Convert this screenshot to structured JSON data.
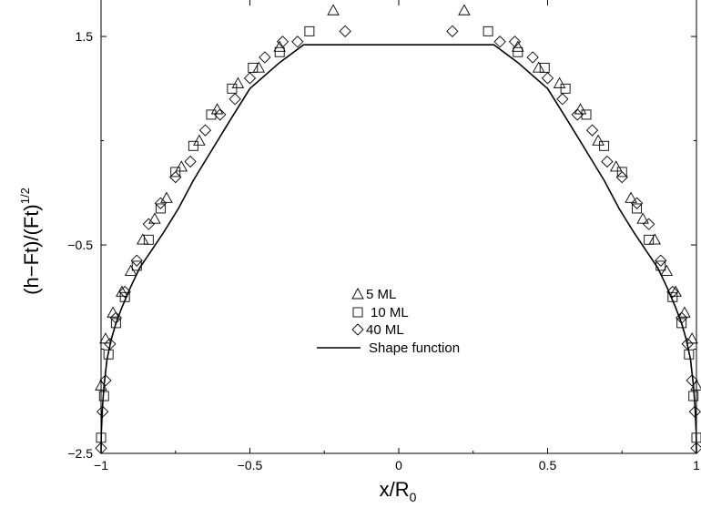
{
  "chart_data": {
    "type": "scatter",
    "xlabel": {
      "main": "x/R",
      "sub": "0"
    },
    "ylabel": {
      "main": "(h−Ft)/(Ft)",
      "sup": "1/2"
    },
    "xlim": [
      -1,
      1
    ],
    "ylim": [
      -2.5,
      1.85
    ],
    "x_ticks": [
      {
        "value": -1,
        "label": "−1"
      },
      {
        "value": -0.5,
        "label": "−0.5"
      },
      {
        "value": 0,
        "label": "0"
      },
      {
        "value": 0.5,
        "label": "0.5"
      },
      {
        "value": 1,
        "label": "1"
      }
    ],
    "y_ticks": [
      {
        "value": -2.5,
        "label": "−2.5"
      },
      {
        "value": -0.5,
        "label": "−0.5"
      },
      {
        "value": 1.5,
        "label": "1.5"
      }
    ],
    "legend_position": "center",
    "series": [
      {
        "name": "5 ML",
        "marker": "triangle",
        "x": [
          -1.0,
          -0.985,
          -0.96,
          -0.93,
          -0.9,
          -0.86,
          -0.82,
          -0.78,
          -0.73,
          -0.67,
          -0.61,
          -0.54,
          -0.47,
          -0.4,
          -0.22,
          0.22,
          0.4,
          0.47,
          0.54,
          0.61,
          0.67,
          0.73,
          0.78,
          0.82,
          0.86,
          0.9,
          0.93,
          0.96,
          0.985,
          1.0
        ],
        "y": [
          -1.85,
          -1.4,
          -1.15,
          -0.95,
          -0.75,
          -0.45,
          -0.25,
          -0.05,
          0.25,
          0.5,
          0.8,
          1.05,
          1.2,
          1.4,
          1.75,
          1.75,
          1.4,
          1.2,
          1.05,
          0.8,
          0.5,
          0.25,
          -0.05,
          -0.25,
          -0.45,
          -0.75,
          -0.95,
          -1.15,
          -1.4,
          -1.85
        ]
      },
      {
        "name": "10 ML",
        "marker": "square",
        "x": [
          -1.0,
          -0.99,
          -0.975,
          -0.95,
          -0.92,
          -0.88,
          -0.84,
          -0.8,
          -0.75,
          -0.69,
          -0.63,
          -0.56,
          -0.49,
          -0.4,
          -0.3,
          0.3,
          0.4,
          0.49,
          0.56,
          0.63,
          0.69,
          0.75,
          0.8,
          0.84,
          0.88,
          0.92,
          0.95,
          0.975,
          0.99,
          1.0
        ],
        "y": [
          -2.35,
          -1.95,
          -1.55,
          -1.25,
          -1.0,
          -0.7,
          -0.45,
          -0.15,
          0.2,
          0.45,
          0.75,
          1.0,
          1.2,
          1.35,
          1.55,
          1.55,
          1.35,
          1.2,
          1.0,
          0.75,
          0.45,
          0.2,
          -0.15,
          -0.45,
          -0.7,
          -1.0,
          -1.25,
          -1.55,
          -1.95,
          -2.35
        ]
      },
      {
        "name": "40 ML",
        "marker": "diamond",
        "x": [
          -1.0,
          -0.995,
          -0.985,
          -0.97,
          -0.95,
          -0.92,
          -0.88,
          -0.84,
          -0.8,
          -0.75,
          -0.7,
          -0.65,
          -0.6,
          -0.55,
          -0.5,
          -0.45,
          -0.39,
          -0.34,
          -0.18,
          0.18,
          0.34,
          0.39,
          0.45,
          0.5,
          0.55,
          0.6,
          0.65,
          0.7,
          0.75,
          0.8,
          0.84,
          0.88,
          0.92,
          0.95,
          0.97,
          0.985,
          0.995,
          1.0
        ],
        "y": [
          -2.45,
          -2.1,
          -1.8,
          -1.45,
          -1.2,
          -0.95,
          -0.65,
          -0.3,
          -0.1,
          0.15,
          0.3,
          0.6,
          0.75,
          0.9,
          1.1,
          1.3,
          1.45,
          1.45,
          1.55,
          1.55,
          1.45,
          1.45,
          1.3,
          1.1,
          0.9,
          0.75,
          0.6,
          0.3,
          0.15,
          -0.1,
          -0.3,
          -0.65,
          -0.95,
          -1.2,
          -1.45,
          -1.8,
          -2.1,
          -2.45
        ]
      },
      {
        "name": "Shape function",
        "marker": "line",
        "x": [
          -1.0,
          -0.999,
          -0.995,
          -0.99,
          -0.98,
          -0.965,
          -0.95,
          -0.93,
          -0.9,
          -0.87,
          -0.83,
          -0.79,
          -0.74,
          -0.69,
          -0.63,
          -0.57,
          -0.5,
          -0.4,
          -0.32,
          0.32,
          0.4,
          0.5,
          0.57,
          0.63,
          0.69,
          0.74,
          0.79,
          0.83,
          0.87,
          0.9,
          0.93,
          0.95,
          0.965,
          0.98,
          0.99,
          0.995,
          0.999,
          1.0
        ],
        "y": [
          -2.5,
          -2.3,
          -2.05,
          -1.85,
          -1.6,
          -1.4,
          -1.25,
          -1.1,
          -0.9,
          -0.72,
          -0.55,
          -0.38,
          -0.15,
          0.12,
          0.4,
          0.68,
          1.0,
          1.25,
          1.42,
          1.42,
          1.25,
          1.0,
          0.68,
          0.4,
          0.12,
          -0.15,
          -0.38,
          -0.55,
          -0.72,
          -0.9,
          -1.1,
          -1.25,
          -1.4,
          -1.6,
          -1.85,
          -2.05,
          -2.3,
          -2.5
        ]
      }
    ]
  }
}
